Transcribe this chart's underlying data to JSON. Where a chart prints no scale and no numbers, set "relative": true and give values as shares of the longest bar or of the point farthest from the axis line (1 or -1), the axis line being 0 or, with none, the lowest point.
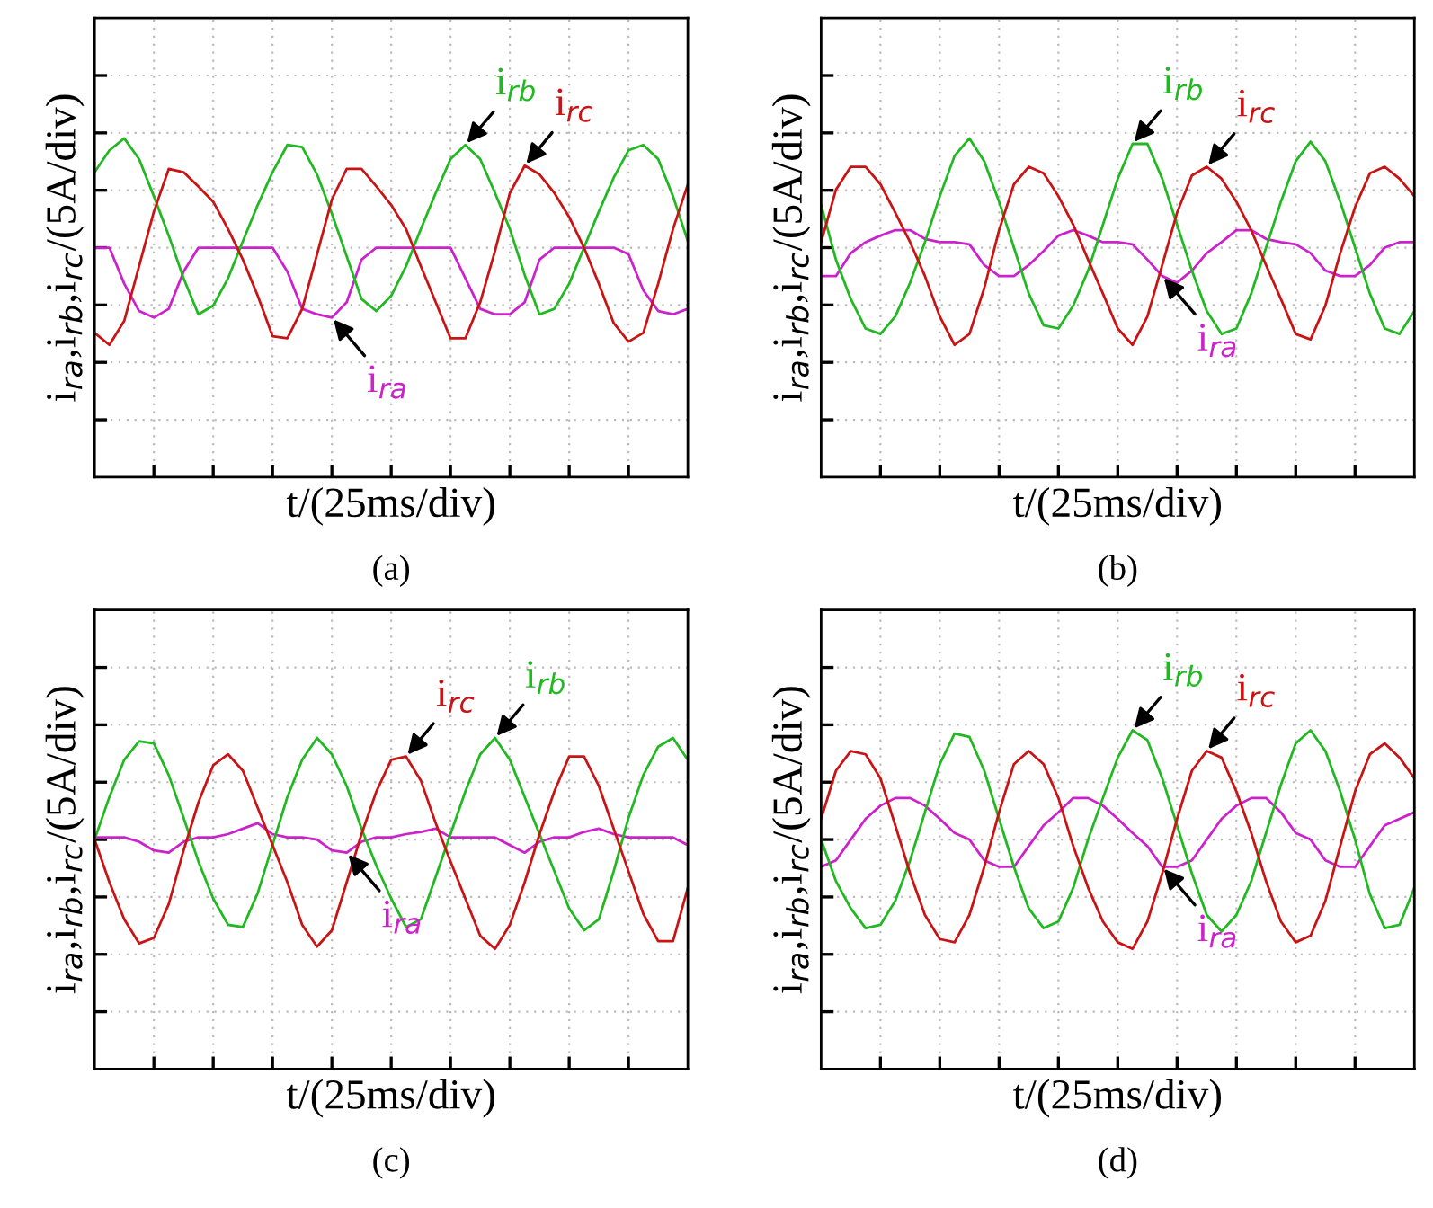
{
  "chart_data": [
    {
      "type": "line",
      "relative": true,
      "title": "(a)",
      "xlabel": "t/(25ms/div)",
      "ylabel": "i$_{ra}$,i$_{rb}$,i$_{rc}$/(5A/div)",
      "grid": true,
      "tick_labels": false,
      "legend": false,
      "categories": [
        null,
        null,
        null,
        null,
        null,
        null,
        null,
        null,
        null,
        null,
        null,
        null,
        null,
        null,
        null,
        null,
        null,
        null,
        null,
        null,
        null,
        null,
        null,
        null,
        null,
        null,
        null,
        null,
        null,
        null,
        null,
        null,
        null,
        null,
        null,
        null,
        null,
        null,
        null,
        null,
        null
      ],
      "series": [
        {
          "name": "i$_{ra}$",
          "color": "#cc22cc",
          "values": [
            0,
            0,
            -0.33,
            -0.58,
            -0.64,
            -0.56,
            -0.22,
            0,
            0,
            0,
            0,
            0,
            0,
            -0.22,
            -0.56,
            -0.61,
            -0.64,
            -0.5,
            -0.11,
            0,
            0,
            0,
            0,
            0,
            0,
            -0.28,
            -0.56,
            -0.61,
            -0.61,
            -0.5,
            -0.11,
            0,
            0,
            0,
            0,
            0,
            -0.06,
            -0.39,
            -0.58,
            -0.61,
            -0.56
          ]
        },
        {
          "name": "i$_{rb}$",
          "color": "#22b822",
          "values": [
            0.69,
            0.89,
            1.0,
            0.81,
            0.47,
            0.11,
            -0.28,
            -0.61,
            -0.53,
            -0.28,
            0.06,
            0.39,
            0.69,
            0.94,
            0.92,
            0.67,
            0.31,
            -0.08,
            -0.47,
            -0.58,
            -0.44,
            -0.17,
            0.17,
            0.5,
            0.81,
            0.94,
            0.81,
            0.5,
            0.17,
            -0.25,
            -0.61,
            -0.56,
            -0.33,
            0,
            0.33,
            0.64,
            0.89,
            0.94,
            0.81,
            0.47,
            0.06
          ]
        },
        {
          "name": "i$_{rc}$",
          "color": "#c81414",
          "values": [
            -0.78,
            -0.89,
            -0.67,
            -0.17,
            0.33,
            0.72,
            0.69,
            0.56,
            0.42,
            0.17,
            -0.11,
            -0.44,
            -0.81,
            -0.83,
            -0.56,
            -0.06,
            0.44,
            0.72,
            0.72,
            0.56,
            0.39,
            0.17,
            -0.17,
            -0.5,
            -0.83,
            -0.83,
            -0.5,
            -0.03,
            0.5,
            0.75,
            0.67,
            0.5,
            0.28,
            0,
            -0.33,
            -0.69,
            -0.86,
            -0.78,
            -0.33,
            0.17,
            0.58
          ]
        }
      ]
    },
    {
      "type": "line",
      "relative": true,
      "title": "(b)",
      "xlabel": "t/(25ms/div)",
      "ylabel": "i$_{ra}$,i$_{rb}$,i$_{rc}$/(5A/div)",
      "grid": true,
      "tick_labels": false,
      "legend": false,
      "categories": [
        null,
        null,
        null,
        null,
        null,
        null,
        null,
        null,
        null,
        null,
        null,
        null,
        null,
        null,
        null,
        null,
        null,
        null,
        null,
        null,
        null,
        null,
        null,
        null,
        null,
        null,
        null,
        null,
        null,
        null,
        null,
        null,
        null,
        null,
        null,
        null,
        null,
        null,
        null,
        null,
        null
      ],
      "series": [
        {
          "name": "i$_{ra}$",
          "color": "#cc22cc",
          "values": [
            -0.26,
            -0.26,
            -0.05,
            0.05,
            0.11,
            0.16,
            0.16,
            0.08,
            0.05,
            0.05,
            0.03,
            -0.16,
            -0.26,
            -0.26,
            -0.16,
            -0.03,
            0.11,
            0.16,
            0.11,
            0.05,
            0.05,
            0.03,
            -0.11,
            -0.26,
            -0.32,
            -0.21,
            -0.05,
            0.05,
            0.16,
            0.16,
            0.08,
            0.05,
            0.03,
            -0.05,
            -0.21,
            -0.26,
            -0.26,
            -0.16,
            0,
            0.05,
            0.05
          ]
        },
        {
          "name": "i$_{rb}$",
          "color": "#22b822",
          "values": [
            0.39,
            -0.11,
            -0.47,
            -0.74,
            -0.79,
            -0.63,
            -0.32,
            0.05,
            0.47,
            0.84,
            1.0,
            0.79,
            0.42,
            0,
            -0.42,
            -0.71,
            -0.74,
            -0.53,
            -0.21,
            0.21,
            0.63,
            0.95,
            0.95,
            0.63,
            0.21,
            -0.21,
            -0.58,
            -0.79,
            -0.74,
            -0.42,
            0,
            0.42,
            0.79,
            0.97,
            0.79,
            0.42,
            0,
            -0.42,
            -0.74,
            -0.79,
            -0.58
          ]
        },
        {
          "name": "i$_{rc}$",
          "color": "#c81414",
          "values": [
            0.05,
            0.53,
            0.74,
            0.74,
            0.58,
            0.32,
            0.05,
            -0.26,
            -0.63,
            -0.89,
            -0.79,
            -0.37,
            0.16,
            0.58,
            0.74,
            0.68,
            0.47,
            0.21,
            -0.11,
            -0.42,
            -0.74,
            -0.89,
            -0.63,
            -0.16,
            0.32,
            0.66,
            0.74,
            0.63,
            0.42,
            0.16,
            -0.16,
            -0.47,
            -0.79,
            -0.84,
            -0.53,
            -0.05,
            0.37,
            0.68,
            0.74,
            0.63,
            0.47
          ]
        }
      ]
    },
    {
      "type": "line",
      "relative": true,
      "title": "(c)",
      "xlabel": "t/(25ms/div)",
      "ylabel": "i$_{ra}$,i$_{rb}$,i$_{rc}$/(5A/div)",
      "grid": true,
      "tick_labels": false,
      "legend": false,
      "categories": [
        null,
        null,
        null,
        null,
        null,
        null,
        null,
        null,
        null,
        null,
        null,
        null,
        null,
        null,
        null,
        null,
        null,
        null,
        null,
        null,
        null,
        null,
        null,
        null,
        null,
        null,
        null,
        null,
        null,
        null,
        null,
        null,
        null,
        null,
        null,
        null,
        null,
        null,
        null,
        null,
        null
      ],
      "series": [
        {
          "name": "i$_{ra}$",
          "color": "#cc22cc",
          "values": [
            0.02,
            0.02,
            0.02,
            -0.02,
            -0.1,
            -0.12,
            -0.02,
            0.02,
            0.02,
            0.05,
            0.1,
            0.15,
            0.05,
            0.02,
            0.02,
            0,
            -0.1,
            -0.12,
            -0.02,
            0.02,
            0.02,
            0.05,
            0.07,
            0.1,
            0.02,
            0.02,
            0.02,
            0.02,
            -0.05,
            -0.12,
            -0.02,
            0.02,
            0.02,
            0.07,
            0.1,
            0.05,
            0.02,
            0.02,
            0.02,
            0.02,
            -0.05
          ]
        },
        {
          "name": "i$_{rb}$",
          "color": "#22b822",
          "values": [
            0,
            0.39,
            0.73,
            0.9,
            0.88,
            0.59,
            0.2,
            -0.2,
            -0.54,
            -0.78,
            -0.8,
            -0.49,
            -0.05,
            0.39,
            0.73,
            0.93,
            0.78,
            0.49,
            0.1,
            -0.24,
            -0.54,
            -0.8,
            -0.73,
            -0.34,
            0.05,
            0.44,
            0.78,
            0.93,
            0.73,
            0.39,
            0.05,
            -0.29,
            -0.63,
            -0.83,
            -0.73,
            -0.29,
            0.2,
            0.59,
            0.85,
            0.93,
            0.73
          ]
        },
        {
          "name": "i$_{rc}$",
          "color": "#c81414",
          "values": [
            0,
            -0.39,
            -0.73,
            -0.95,
            -0.9,
            -0.59,
            -0.1,
            0.34,
            0.68,
            0.78,
            0.63,
            0.29,
            -0.05,
            -0.39,
            -0.78,
            -0.98,
            -0.83,
            -0.39,
            0.05,
            0.44,
            0.73,
            0.76,
            0.54,
            0.15,
            -0.2,
            -0.54,
            -0.88,
            -1.0,
            -0.78,
            -0.39,
            0.05,
            0.44,
            0.76,
            0.76,
            0.49,
            0.1,
            -0.29,
            -0.68,
            -0.93,
            -0.93,
            -0.44
          ]
        }
      ]
    },
    {
      "type": "line",
      "relative": true,
      "title": "(d)",
      "xlabel": "t/(25ms/div)",
      "ylabel": "i$_{ra}$,i$_{rb}$,i$_{rc}$/(5A/div)",
      "grid": true,
      "tick_labels": false,
      "legend": false,
      "categories": [
        null,
        null,
        null,
        null,
        null,
        null,
        null,
        null,
        null,
        null,
        null,
        null,
        null,
        null,
        null,
        null,
        null,
        null,
        null,
        null,
        null,
        null,
        null,
        null,
        null,
        null,
        null,
        null,
        null,
        null,
        null,
        null,
        null,
        null,
        null,
        null,
        null,
        null,
        null,
        null,
        null
      ],
      "series": [
        {
          "name": "i$_{ra}$",
          "color": "#cc22cc",
          "values": [
            -0.25,
            -0.19,
            0,
            0.19,
            0.31,
            0.38,
            0.38,
            0.31,
            0.19,
            0.06,
            0,
            -0.19,
            -0.25,
            -0.25,
            -0.06,
            0.13,
            0.25,
            0.38,
            0.38,
            0.31,
            0.19,
            0.06,
            -0.06,
            -0.25,
            -0.25,
            -0.19,
            0,
            0.19,
            0.31,
            0.38,
            0.38,
            0.25,
            0.06,
            0,
            -0.19,
            -0.25,
            -0.25,
            -0.06,
            0.13,
            0.19,
            0.25
          ]
        },
        {
          "name": "i$_{rb}$",
          "color": "#22b822",
          "values": [
            0,
            -0.38,
            -0.63,
            -0.81,
            -0.78,
            -0.56,
            -0.19,
            0.25,
            0.69,
            0.97,
            0.94,
            0.63,
            0.19,
            -0.25,
            -0.63,
            -0.81,
            -0.75,
            -0.44,
            0,
            0.38,
            0.75,
            1.0,
            0.91,
            0.56,
            0.13,
            -0.31,
            -0.69,
            -0.84,
            -0.69,
            -0.38,
            0.06,
            0.5,
            0.88,
            1.0,
            0.81,
            0.44,
            0,
            -0.5,
            -0.81,
            -0.78,
            -0.44
          ]
        },
        {
          "name": "i$_{rc}$",
          "color": "#c81414",
          "values": [
            0.19,
            0.63,
            0.81,
            0.78,
            0.56,
            0.13,
            -0.31,
            -0.69,
            -0.91,
            -0.94,
            -0.69,
            -0.25,
            0.25,
            0.69,
            0.81,
            0.69,
            0.38,
            -0.06,
            -0.44,
            -0.75,
            -0.94,
            -1.0,
            -0.75,
            -0.31,
            0.19,
            0.63,
            0.81,
            0.75,
            0.44,
            0.06,
            -0.38,
            -0.75,
            -0.94,
            -0.88,
            -0.56,
            -0.06,
            0.44,
            0.78,
            0.88,
            0.75,
            0.56
          ]
        }
      ]
    }
  ]
}
